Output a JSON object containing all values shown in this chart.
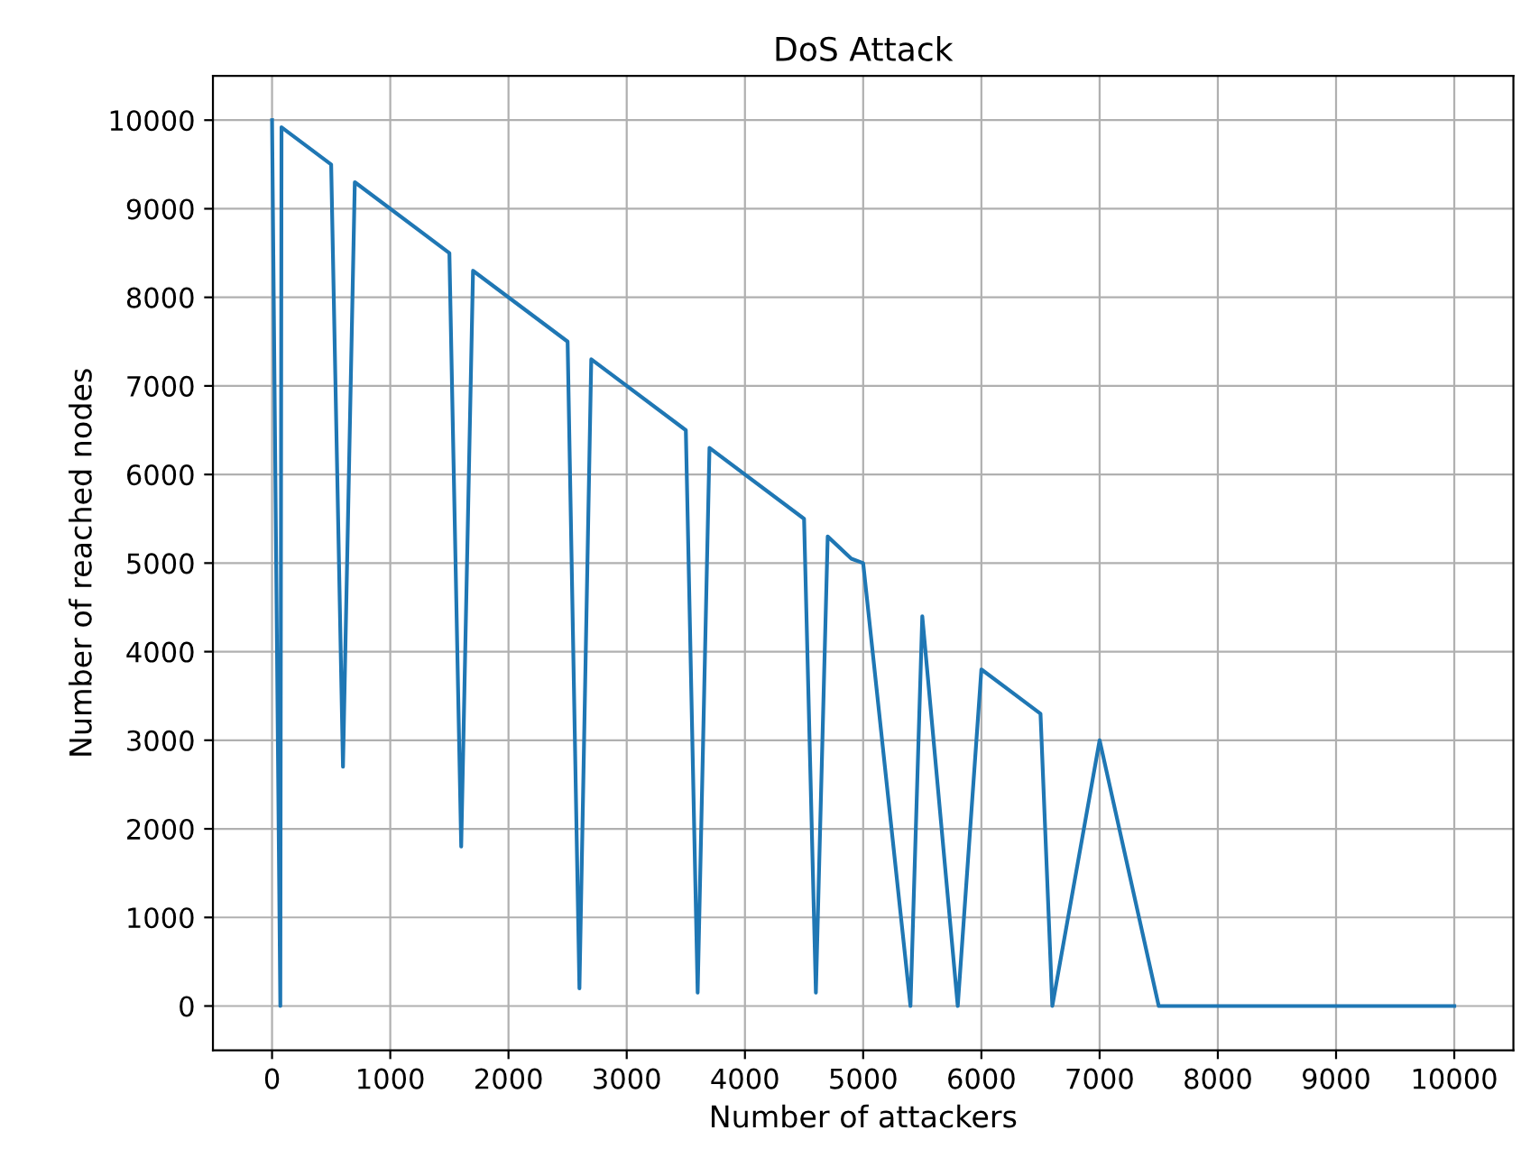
{
  "chart_data": {
    "type": "line",
    "title": "DoS Attack",
    "xlabel": "Number of attackers",
    "ylabel": "Number of reached nodes",
    "series": [
      {
        "color": "#1f77b4",
        "x": [
          0,
          70,
          80,
          500,
          600,
          700,
          1500,
          1600,
          1700,
          2500,
          2600,
          2700,
          3500,
          3600,
          3700,
          4500,
          4600,
          4700,
          4900,
          5000,
          5400,
          5500,
          5800,
          6000,
          6500,
          6600,
          7000,
          7500,
          10000
        ],
        "values": [
          10000,
          0,
          9920,
          9500,
          2700,
          9300,
          8500,
          1800,
          8300,
          7500,
          200,
          7300,
          6500,
          150,
          6300,
          5500,
          150,
          5300,
          5050,
          5000,
          0,
          4400,
          0,
          3800,
          3300,
          0,
          3000,
          0,
          0
        ]
      }
    ],
    "xlim": [
      -500,
      10500
    ],
    "ylim": [
      -500,
      10500
    ],
    "xticks": [
      0,
      1000,
      2000,
      3000,
      4000,
      5000,
      6000,
      7000,
      8000,
      9000,
      10000
    ],
    "yticks": [
      0,
      1000,
      2000,
      3000,
      4000,
      5000,
      6000,
      7000,
      8000,
      9000,
      10000
    ],
    "grid": true,
    "line_style": "solid",
    "marker": "none"
  }
}
